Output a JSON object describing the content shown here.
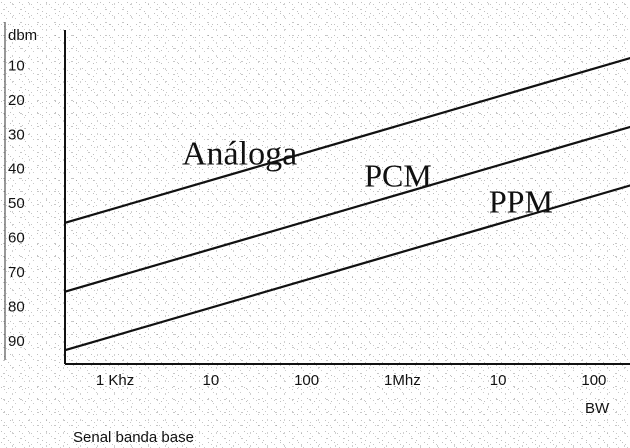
{
  "chart_data": {
    "type": "line",
    "ylabel": "dbm",
    "xlabel": "BW",
    "y_ticks": [
      "10",
      "20",
      "30",
      "40",
      "50",
      "60",
      "70",
      "80",
      "90"
    ],
    "y_tick_values": [
      10,
      20,
      30,
      40,
      50,
      60,
      70,
      80,
      90
    ],
    "ylim": [
      0,
      97
    ],
    "y_inverted": true,
    "x_ticks": [
      "1 Khz",
      "10",
      "100",
      "1Mhz",
      "10",
      "100"
    ],
    "x_tick_hz": [
      1000,
      10000,
      100000,
      1000000,
      10000000,
      100000000
    ],
    "x_scale": "log",
    "xlim_hz": [
      300,
      250000000
    ],
    "series": [
      {
        "name": "Análoga",
        "x_hz": [
          300,
          250000000
        ],
        "y_dbm": [
          56,
          8
        ]
      },
      {
        "name": "PCM",
        "x_hz": [
          300,
          250000000
        ],
        "y_dbm": [
          76,
          28
        ]
      },
      {
        "name": "PPM",
        "x_hz": [
          300,
          250000000
        ],
        "y_dbm": [
          93,
          45
        ]
      }
    ],
    "footnote": "Senal banda base",
    "grid": false
  }
}
